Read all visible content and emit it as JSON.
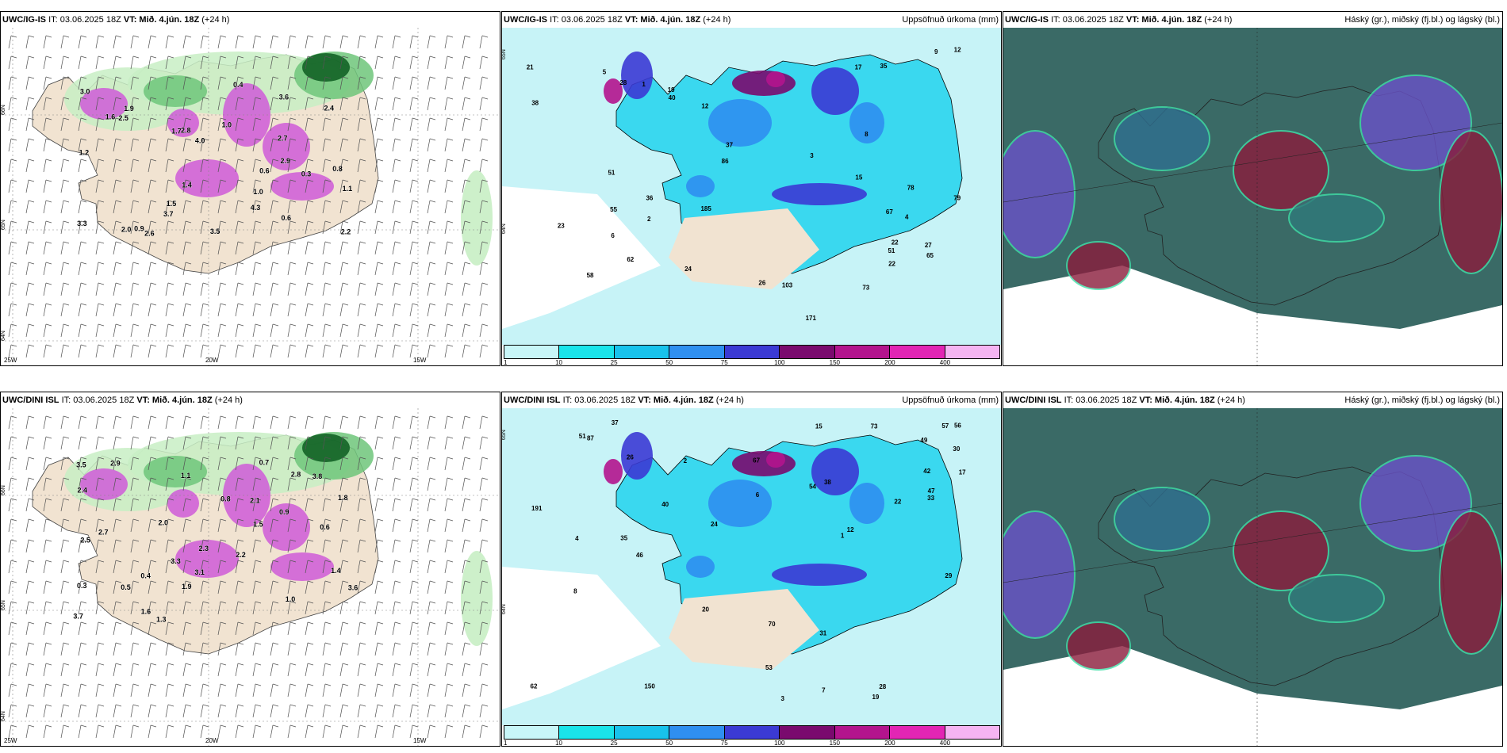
{
  "panels": [
    {
      "id": "p1",
      "model": "UWC/IG-IS",
      "it": "IT: 03.06.2025 18Z",
      "vt": "VT: Mið. 4.jún. 18Z",
      "lead": "(+24 h)",
      "right_title": "",
      "lat_labels": [
        "66N",
        "65N",
        "64N"
      ],
      "lon_labels": [
        "25W",
        "20W",
        "15W"
      ],
      "labels": [
        {
          "v": "0.9"
        },
        {
          "v": "1.4"
        },
        {
          "v": "2.6"
        },
        {
          "v": "4.0"
        },
        {
          "v": "3.5"
        },
        {
          "v": "2.7"
        },
        {
          "v": "1.0"
        },
        {
          "v": "3.3"
        },
        {
          "v": "0.6"
        },
        {
          "v": "2.5"
        },
        {
          "v": "3.7"
        },
        {
          "v": "4.3"
        },
        {
          "v": "1.7"
        },
        {
          "v": "3.6"
        },
        {
          "v": "2.9"
        },
        {
          "v": "1.0"
        },
        {
          "v": "0.4"
        },
        {
          "v": "2.8"
        },
        {
          "v": "1.2"
        },
        {
          "v": "2.0"
        },
        {
          "v": "0.8"
        },
        {
          "v": "1.9"
        },
        {
          "v": "2.4"
        },
        {
          "v": "0.6"
        },
        {
          "v": "1.5"
        },
        {
          "v": "3.0"
        },
        {
          "v": "1.1"
        },
        {
          "v": "0.3"
        },
        {
          "v": "2.2"
        },
        {
          "v": "1.6"
        }
      ]
    },
    {
      "id": "p2",
      "model": "UWC/IG-IS",
      "it": "IT: 03.06.2025 18Z",
      "vt": "VT: Mið. 4.jún. 18Z",
      "lead": "(+24 h)",
      "right_title": "Uppsöfnuð úrkoma (mm)",
      "lat_labels": [
        "65N",
        "64N"
      ],
      "labels": [
        {
          "v": "17"
        },
        {
          "v": "19"
        },
        {
          "v": "22"
        },
        {
          "v": "55"
        },
        {
          "v": "40"
        },
        {
          "v": "78"
        },
        {
          "v": "171"
        },
        {
          "v": "73"
        },
        {
          "v": "86"
        },
        {
          "v": "185"
        },
        {
          "v": "79"
        },
        {
          "v": "65"
        },
        {
          "v": "51"
        },
        {
          "v": "36"
        },
        {
          "v": "103"
        },
        {
          "v": "62"
        },
        {
          "v": "38"
        },
        {
          "v": "35"
        },
        {
          "v": "12"
        },
        {
          "v": "26"
        },
        {
          "v": "27"
        },
        {
          "v": "24"
        },
        {
          "v": "58"
        },
        {
          "v": "28"
        },
        {
          "v": "15"
        },
        {
          "v": "51"
        },
        {
          "v": "23"
        },
        {
          "v": "37"
        },
        {
          "v": "21"
        },
        {
          "v": "67"
        },
        {
          "v": "22"
        },
        {
          "v": "9"
        },
        {
          "v": "8"
        },
        {
          "v": "5"
        },
        {
          "v": "2"
        },
        {
          "v": "1"
        },
        {
          "v": "4"
        },
        {
          "v": "12"
        },
        {
          "v": "3"
        },
        {
          "v": "6"
        }
      ]
    },
    {
      "id": "p3",
      "model": "UWC/IG-IS",
      "it": "IT: 03.06.2025 18Z",
      "vt": "VT: Mið. 4.jún. 18Z",
      "lead": "(+24 h)",
      "right_title": "Háský (gr.), miðský (fj.bl.) og lágský (bl.)",
      "labels": []
    },
    {
      "id": "p4",
      "model": "UWC/DINI ISL",
      "it": "IT: 03.06.2025 18Z",
      "vt": "VT: Mið. 4.jún. 18Z",
      "lead": "(+24 h)",
      "right_title": "",
      "lat_labels": [
        "66N",
        "65N",
        "64N"
      ],
      "lon_labels": [
        "25W",
        "20W",
        "15W"
      ],
      "labels": [
        {
          "v": "0.9"
        },
        {
          "v": "2.5"
        },
        {
          "v": "2.3"
        },
        {
          "v": "0.3"
        },
        {
          "v": "3.1"
        },
        {
          "v": "2.8"
        },
        {
          "v": "3.6"
        },
        {
          "v": "1.8"
        },
        {
          "v": "2.0"
        },
        {
          "v": "1.4"
        },
        {
          "v": "0.6"
        },
        {
          "v": "1.9"
        },
        {
          "v": "0.5"
        },
        {
          "v": "2.2"
        },
        {
          "v": "3.3"
        },
        {
          "v": "2.7"
        },
        {
          "v": "1.1"
        },
        {
          "v": "0.8"
        },
        {
          "v": "3.7"
        },
        {
          "v": "2.1"
        },
        {
          "v": "1.6"
        },
        {
          "v": "0.4"
        },
        {
          "v": "1.5"
        },
        {
          "v": "3.8"
        },
        {
          "v": "2.9"
        },
        {
          "v": "1.0"
        },
        {
          "v": "0.7"
        },
        {
          "v": "2.4"
        },
        {
          "v": "1.3"
        },
        {
          "v": "3.5"
        }
      ]
    },
    {
      "id": "p5",
      "model": "UWC/DINI ISL",
      "it": "IT: 03.06.2025 18Z",
      "vt": "VT: Mið. 4.jún. 18Z",
      "lead": "(+24 h)",
      "right_title": "Uppsöfnuð úrkoma (mm)",
      "lat_labels": [
        "65N",
        "64N"
      ],
      "labels": [
        {
          "v": "46"
        },
        {
          "v": "56"
        },
        {
          "v": "191"
        },
        {
          "v": "73"
        },
        {
          "v": "150"
        },
        {
          "v": "47"
        },
        {
          "v": "30"
        },
        {
          "v": "38"
        },
        {
          "v": "62"
        },
        {
          "v": "87"
        },
        {
          "v": "67"
        },
        {
          "v": "31"
        },
        {
          "v": "54"
        },
        {
          "v": "51"
        },
        {
          "v": "37"
        },
        {
          "v": "28"
        },
        {
          "v": "22"
        },
        {
          "v": "57"
        },
        {
          "v": "29"
        },
        {
          "v": "17"
        },
        {
          "v": "26"
        },
        {
          "v": "24"
        },
        {
          "v": "49"
        },
        {
          "v": "20"
        },
        {
          "v": "70"
        },
        {
          "v": "33"
        },
        {
          "v": "19"
        },
        {
          "v": "7"
        },
        {
          "v": "2"
        },
        {
          "v": "1"
        },
        {
          "v": "4"
        },
        {
          "v": "3"
        },
        {
          "v": "6"
        },
        {
          "v": "35"
        },
        {
          "v": "42"
        },
        {
          "v": "53"
        },
        {
          "v": "40"
        },
        {
          "v": "15"
        },
        {
          "v": "8"
        },
        {
          "v": "12"
        }
      ]
    },
    {
      "id": "p6",
      "model": "UWC/DINI ISL",
      "it": "IT: 03.06.2025 18Z",
      "vt": "VT: Mið. 4.jún. 18Z",
      "lead": "(+24 h)",
      "right_title": "Háský (gr.), miðský (fj.bl.) og lágský (bl.)",
      "labels": []
    }
  ],
  "colorbar": {
    "ticks": [
      "1",
      "10",
      "25",
      "50",
      "75",
      "100",
      "150",
      "200",
      "400"
    ],
    "colors": [
      "#c8f6f8",
      "#1ae4ea",
      "#18c2ec",
      "#2f8ff0",
      "#3b3ad4",
      "#7a0a6e",
      "#b3148d",
      "#e225b4",
      "#f5b4f2"
    ]
  },
  "colors": {
    "land": "#f1e3d1",
    "sea": "#ffffff",
    "green_light": "#c8eec4",
    "green_mid": "#6fc67a",
    "green_dark": "#0c5c20",
    "magenta": "#cf5bd8",
    "precip_base": "#c7f3f7",
    "cloud_high": "#3a6a66",
    "cloud_mid": "#6a52c8",
    "cloud_low": "#8a1c3c",
    "cloud_edge": "#3fe0a8"
  }
}
